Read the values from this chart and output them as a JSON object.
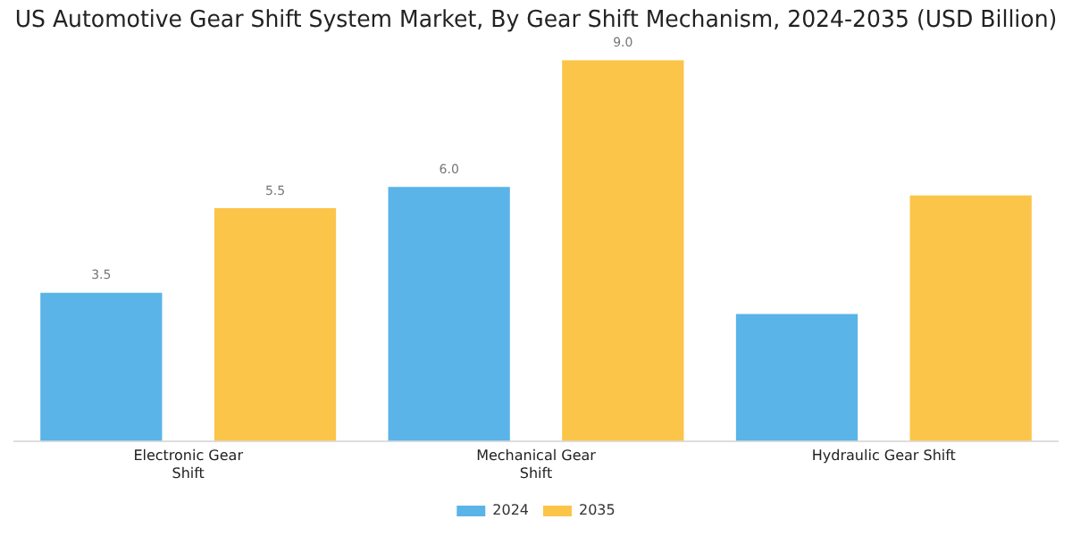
{
  "chart_data": {
    "type": "bar",
    "title": "US Automotive Gear Shift System Market, By Gear Shift Mechanism, 2024-2035 (USD Billion)",
    "categories": [
      "Electronic Gear Shift",
      "Mechanical Gear Shift",
      "Hydraulic Gear Shift"
    ],
    "series": [
      {
        "name": "2024",
        "color": "#5ab4e8",
        "values": [
          3.5,
          6.0,
          3.0
        ],
        "value_labels": [
          "3.5",
          "6.0",
          null
        ]
      },
      {
        "name": "2035",
        "color": "#fbc54a",
        "values": [
          5.5,
          9.0,
          5.8
        ],
        "value_labels": [
          "5.5",
          "9.0",
          null
        ]
      }
    ],
    "grid": false,
    "legend": "bottom",
    "tick_labels": "x"
  }
}
